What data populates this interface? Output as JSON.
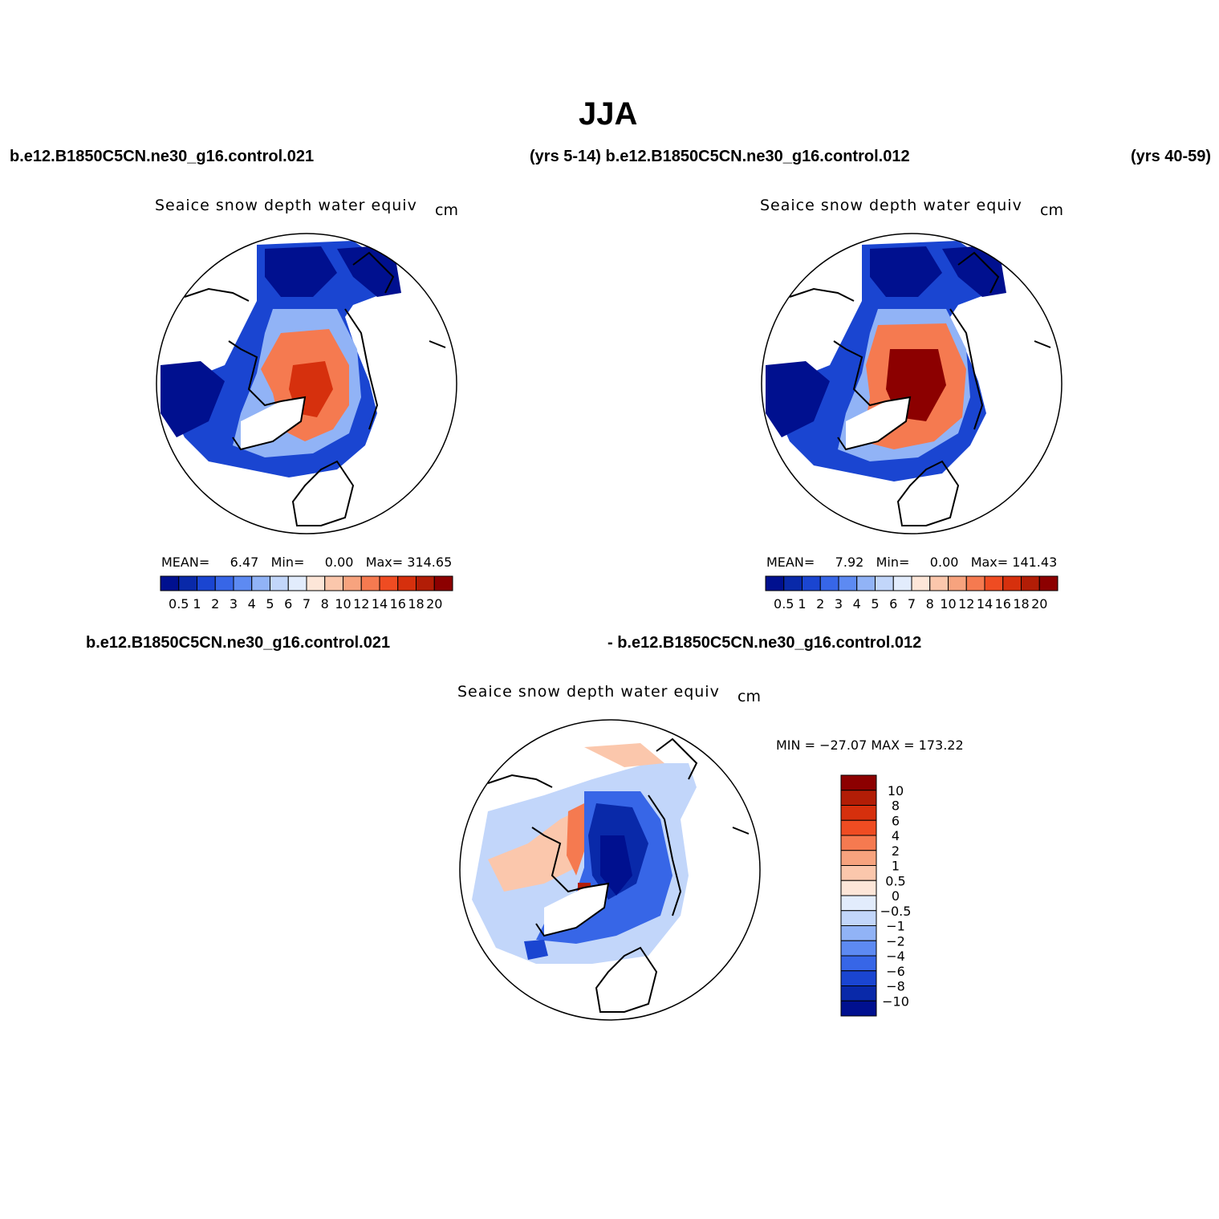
{
  "title": "JJA",
  "header": {
    "case1": "b.e12.B1850C5CN.ne30_g16.control.021",
    "mid": "(yrs 5-14) b.e12.B1850C5CN.ne30_g16.control.012",
    "yrs2": "(yrs 40-59)"
  },
  "diff_header": {
    "left": "b.e12.B1850C5CN.ne30_g16.control.021",
    "right": "- b.e12.B1850C5CN.ne30_g16.control.012"
  },
  "colors": {
    "abs_scale": [
      "#00108f",
      "#0929a9",
      "#1a45d1",
      "#3766e7",
      "#5d8af2",
      "#91b3f6",
      "#c2d6fa",
      "#e2ecfc",
      "#fde6d8",
      "#fbc7ac",
      "#f7a37e",
      "#f57a50",
      "#ef4c22",
      "#d6300d",
      "#b21d06",
      "#8c0000"
    ],
    "diff_scale": [
      "#00108f",
      "#0929a9",
      "#1a45d1",
      "#3766e7",
      "#5d8af2",
      "#91b3f6",
      "#c2d6fa",
      "#e2ecfc",
      "#fde6d8",
      "#fbc7ac",
      "#f7a37e",
      "#f57a50",
      "#ef4c22",
      "#d6300d",
      "#b21d06",
      "#8c0000"
    ]
  },
  "panels": [
    {
      "title": "Seaice snow depth water equiv",
      "units": "cm",
      "mean_label": "MEAN=",
      "mean": "6.47",
      "min_label": "Min=",
      "min": "0.00",
      "max_label": "Max=",
      "max": "314.65",
      "colorbar_ticks": [
        "0.5",
        "1",
        "2",
        "3",
        "4",
        "5",
        "6",
        "7",
        "8",
        "10",
        "12",
        "14",
        "16",
        "18",
        "20"
      ]
    },
    {
      "title": "Seaice snow depth water equiv",
      "units": "cm",
      "mean_label": "MEAN=",
      "mean": "7.92",
      "min_label": "Min=",
      "min": "0.00",
      "max_label": "Max=",
      "max": "141.43",
      "colorbar_ticks": [
        "0.5",
        "1",
        "2",
        "3",
        "4",
        "5",
        "6",
        "7",
        "8",
        "10",
        "12",
        "14",
        "16",
        "18",
        "20"
      ]
    }
  ],
  "diff_panel": {
    "title": "Seaice snow depth water equiv",
    "units": "cm",
    "minmax": "MIN = −27.07 MAX = 173.22",
    "colorbar_ticks": [
      "10",
      "8",
      "6",
      "4",
      "2",
      "1",
      "0.5",
      "0",
      "−0.5",
      "−1",
      "−2",
      "−4",
      "−6",
      "−8",
      "−10"
    ]
  }
}
